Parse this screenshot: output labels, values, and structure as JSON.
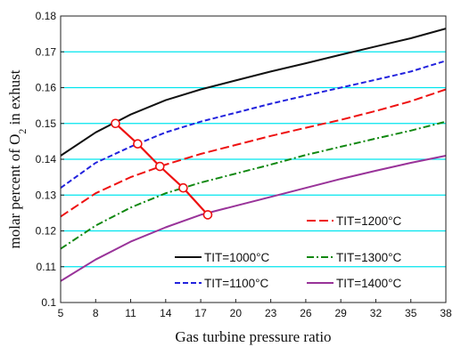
{
  "chart_data": {
    "type": "line",
    "title": "",
    "xlabel": "Gas turbine pressure ratio",
    "ylabel_parts": [
      "molar percent of O",
      "2",
      " in exhust"
    ],
    "xlim": [
      5,
      38
    ],
    "ylim": [
      0.1,
      0.18
    ],
    "xticks": [
      5,
      8,
      11,
      14,
      17,
      20,
      23,
      26,
      29,
      32,
      35,
      38
    ],
    "yticks": [
      0.1,
      0.11,
      0.12,
      0.13,
      0.14,
      0.15,
      0.16,
      0.17,
      0.18
    ],
    "ytick_labels": [
      "0.1",
      "0.11",
      "0.12",
      "0.13",
      "0.14",
      "0.15",
      "0.16",
      "0.17",
      "0.18"
    ],
    "grid": "horizontal",
    "grid_color": "#00e5ee",
    "series": [
      {
        "name": "TIT=1000°C",
        "color": "#111111",
        "dash": "solid",
        "x": [
          5,
          8,
          11,
          14,
          17,
          20,
          23,
          26,
          29,
          32,
          35,
          38
        ],
        "y": [
          0.141,
          0.1475,
          0.1525,
          0.1565,
          0.1595,
          0.162,
          0.1645,
          0.1668,
          0.1692,
          0.1715,
          0.1738,
          0.1765
        ]
      },
      {
        "name": "TIT=1100°C",
        "color": "#2222dd",
        "dash": "dash",
        "x": [
          5,
          8,
          11,
          14,
          17,
          20,
          23,
          26,
          29,
          32,
          35,
          38
        ],
        "y": [
          0.132,
          0.139,
          0.1435,
          0.1475,
          0.1505,
          0.153,
          0.1555,
          0.1578,
          0.16,
          0.1622,
          0.1645,
          0.1675
        ]
      },
      {
        "name": "TIT=1200°C",
        "color": "#ee1111",
        "dash": "longdash",
        "x": [
          5,
          8,
          11,
          14,
          17,
          20,
          23,
          26,
          29,
          32,
          35,
          38
        ],
        "y": [
          0.124,
          0.1305,
          0.135,
          0.1385,
          0.1415,
          0.144,
          0.1465,
          0.1488,
          0.151,
          0.1535,
          0.1562,
          0.1595
        ]
      },
      {
        "name": "TIT=1300°C",
        "color": "#118811",
        "dash": "dashdot",
        "x": [
          5,
          8,
          11,
          14,
          17,
          20,
          23,
          26,
          29,
          32,
          35,
          38
        ],
        "y": [
          0.115,
          0.1215,
          0.1265,
          0.1305,
          0.1335,
          0.136,
          0.1385,
          0.1412,
          0.1435,
          0.1458,
          0.148,
          0.1505
        ]
      },
      {
        "name": "TIT=1400°C",
        "color": "#993399",
        "dash": "solid",
        "x": [
          5,
          8,
          11,
          14,
          17,
          20,
          23,
          26,
          29,
          32,
          35,
          38
        ],
        "y": [
          0.106,
          0.112,
          0.117,
          0.121,
          0.1245,
          0.127,
          0.1295,
          0.132,
          0.1345,
          0.1368,
          0.139,
          0.141
        ]
      }
    ],
    "optimum_line": {
      "color": "#ee1111",
      "points": [
        {
          "x": 9.7,
          "y": 0.15
        },
        {
          "x": 11.6,
          "y": 0.1443
        },
        {
          "x": 13.5,
          "y": 0.138
        },
        {
          "x": 15.5,
          "y": 0.132
        },
        {
          "x": 17.6,
          "y": 0.1245
        }
      ]
    },
    "legend": {
      "placement": "bottom-right",
      "rows": [
        [
          {
            "series": "TIT=1200°C"
          }
        ],
        [
          {
            "series": "TIT=1000°C"
          },
          {
            "series": "TIT=1300°C"
          }
        ],
        [
          {
            "series": "TIT=1100°C"
          },
          {
            "series": "TIT=1400°C"
          }
        ]
      ]
    }
  }
}
